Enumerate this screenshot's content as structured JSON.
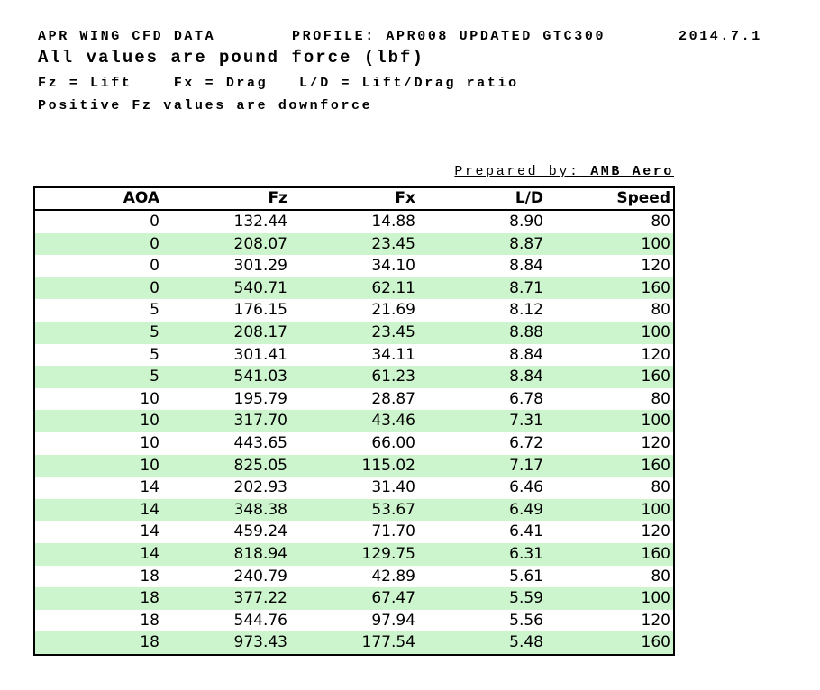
{
  "page": {
    "title_left": "APR WING CFD DATA",
    "title_profile": "PROFILE: APR008 UPDATED GTC300",
    "title_date": "2014.7.1",
    "subtitle": "All values are pound force (lbf)",
    "legend_line": "Fz = Lift    Fx = Drag   L/D = Lift/Drag ratio",
    "note_line": "Positive Fz values are downforce",
    "prepared_by_label": "Prepared by:",
    "prepared_by_value": "AMB Aero"
  },
  "table": {
    "columns": [
      "AOA",
      "Fz",
      "Fx",
      "L/D",
      "Speed"
    ],
    "row_alt_color": "#cdf5cd",
    "rows": [
      [
        "0",
        "132.44",
        "14.88",
        "8.90",
        "80"
      ],
      [
        "0",
        "208.07",
        "23.45",
        "8.87",
        "100"
      ],
      [
        "0",
        "301.29",
        "34.10",
        "8.84",
        "120"
      ],
      [
        "0",
        "540.71",
        "62.11",
        "8.71",
        "160"
      ],
      [
        "5",
        "176.15",
        "21.69",
        "8.12",
        "80"
      ],
      [
        "5",
        "208.17",
        "23.45",
        "8.88",
        "100"
      ],
      [
        "5",
        "301.41",
        "34.11",
        "8.84",
        "120"
      ],
      [
        "5",
        "541.03",
        "61.23",
        "8.84",
        "160"
      ],
      [
        "10",
        "195.79",
        "28.87",
        "6.78",
        "80"
      ],
      [
        "10",
        "317.70",
        "43.46",
        "7.31",
        "100"
      ],
      [
        "10",
        "443.65",
        "66.00",
        "6.72",
        "120"
      ],
      [
        "10",
        "825.05",
        "115.02",
        "7.17",
        "160"
      ],
      [
        "14",
        "202.93",
        "31.40",
        "6.46",
        "80"
      ],
      [
        "14",
        "348.38",
        "53.67",
        "6.49",
        "100"
      ],
      [
        "14",
        "459.24",
        "71.70",
        "6.41",
        "120"
      ],
      [
        "14",
        "818.94",
        "129.75",
        "6.31",
        "160"
      ],
      [
        "18",
        "240.79",
        "42.89",
        "5.61",
        "80"
      ],
      [
        "18",
        "377.22",
        "67.47",
        "5.59",
        "100"
      ],
      [
        "18",
        "544.76",
        "97.94",
        "5.56",
        "120"
      ],
      [
        "18",
        "973.43",
        "177.54",
        "5.48",
        "160"
      ]
    ]
  }
}
